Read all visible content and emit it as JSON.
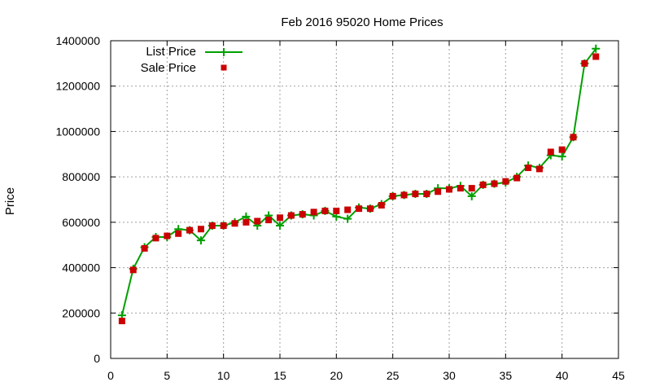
{
  "chart_data": {
    "type": "line",
    "title": "Feb 2016 95020 Home Prices",
    "xlabel": "",
    "ylabel": "Price",
    "xlim": [
      0,
      45
    ],
    "ylim": [
      0,
      1400000
    ],
    "xticks": [
      0,
      5,
      10,
      15,
      20,
      25,
      30,
      35,
      40,
      45
    ],
    "yticks": [
      0,
      200000,
      400000,
      600000,
      800000,
      1000000,
      1200000,
      1400000
    ],
    "grid": true,
    "legend": "top-left",
    "series": [
      {
        "name": "List Price",
        "style": "line-plus",
        "color": "#00a000",
        "x": [
          1,
          2,
          3,
          4,
          5,
          6,
          7,
          8,
          9,
          10,
          11,
          12,
          13,
          14,
          15,
          16,
          17,
          18,
          19,
          20,
          21,
          22,
          23,
          24,
          25,
          26,
          27,
          28,
          29,
          30,
          31,
          32,
          33,
          34,
          35,
          36,
          37,
          38,
          39,
          40,
          41,
          42,
          43
        ],
        "y": [
          190000,
          395000,
          490000,
          535000,
          535000,
          570000,
          565000,
          520000,
          585000,
          585000,
          600000,
          625000,
          585000,
          630000,
          585000,
          630000,
          635000,
          630000,
          650000,
          625000,
          615000,
          665000,
          660000,
          680000,
          715000,
          720000,
          725000,
          725000,
          750000,
          750000,
          760000,
          715000,
          765000,
          770000,
          775000,
          800000,
          850000,
          840000,
          895000,
          890000,
          975000,
          1300000,
          1365000
        ]
      },
      {
        "name": "Sale Price",
        "style": "square-points",
        "color": "#cc0000",
        "x": [
          1,
          2,
          3,
          4,
          5,
          6,
          7,
          8,
          9,
          10,
          11,
          12,
          13,
          14,
          15,
          16,
          17,
          18,
          19,
          20,
          21,
          22,
          23,
          24,
          25,
          26,
          27,
          28,
          29,
          30,
          31,
          32,
          33,
          34,
          35,
          36,
          37,
          38,
          39,
          40,
          41,
          42,
          43
        ],
        "y": [
          165000,
          390000,
          485000,
          530000,
          540000,
          550000,
          565000,
          570000,
          585000,
          585000,
          595000,
          600000,
          605000,
          610000,
          620000,
          630000,
          635000,
          645000,
          650000,
          650000,
          655000,
          660000,
          660000,
          675000,
          715000,
          720000,
          725000,
          725000,
          735000,
          745000,
          750000,
          750000,
          765000,
          770000,
          780000,
          795000,
          840000,
          835000,
          910000,
          920000,
          975000,
          1300000,
          1330000
        ]
      }
    ]
  }
}
